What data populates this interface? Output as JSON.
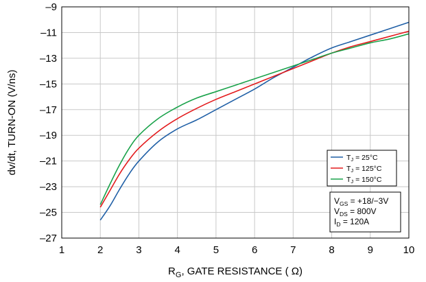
{
  "chart_data": {
    "type": "line",
    "xlabel": "R_G, GATE RESISTANCE ( Ω)",
    "ylabel": "dv/dt, TURN-ON  (V/ns)",
    "xlim": [
      1,
      10
    ],
    "ylim": [
      -27,
      -9
    ],
    "xticks": [
      1,
      2,
      3,
      4,
      5,
      6,
      7,
      8,
      9,
      10
    ],
    "yticks": [
      -9,
      -11,
      -13,
      -15,
      -17,
      -19,
      -21,
      -23,
      -25,
      -27
    ],
    "grid": true,
    "legend_position": "right",
    "series": [
      {
        "name": "Tj = 25°C",
        "color": "#1f5fa6",
        "x": [
          2,
          2.25,
          2.5,
          2.75,
          3,
          3.5,
          4,
          4.5,
          5,
          5.5,
          6,
          6.5,
          7,
          7.5,
          8,
          8.5,
          9,
          9.5,
          10
        ],
        "y": [
          -25.6,
          -24.5,
          -23.2,
          -22.0,
          -21.0,
          -19.5,
          -18.5,
          -17.8,
          -17.0,
          -16.2,
          -15.4,
          -14.5,
          -13.7,
          -12.9,
          -12.2,
          -11.7,
          -11.2,
          -10.7,
          -10.2
        ]
      },
      {
        "name": "Tj = 125°C",
        "color": "#e31a1c",
        "x": [
          2,
          2.25,
          2.5,
          2.75,
          3,
          3.5,
          4,
          4.5,
          5,
          5.5,
          6,
          6.5,
          7,
          7.5,
          8,
          8.5,
          9,
          9.5,
          10
        ],
        "y": [
          -24.6,
          -23.3,
          -22.0,
          -20.9,
          -20.0,
          -18.7,
          -17.7,
          -16.9,
          -16.2,
          -15.6,
          -15.0,
          -14.4,
          -13.8,
          -13.2,
          -12.6,
          -12.1,
          -11.7,
          -11.3,
          -10.9
        ]
      },
      {
        "name": "Tj = 150°C",
        "color": "#19a24a",
        "x": [
          2,
          2.25,
          2.5,
          2.75,
          3,
          3.5,
          4,
          4.5,
          5,
          5.5,
          6,
          6.5,
          7,
          7.5,
          8,
          8.5,
          9,
          9.5,
          10
        ],
        "y": [
          -24.4,
          -22.8,
          -21.3,
          -20.0,
          -19.0,
          -17.7,
          -16.8,
          -16.1,
          -15.6,
          -15.1,
          -14.6,
          -14.1,
          -13.6,
          -13.1,
          -12.6,
          -12.2,
          -11.8,
          -11.5,
          -11.1
        ]
      }
    ],
    "conditions": [
      "V_GS = +18/−3V",
      "V_DS = 800V",
      "I_D = 120A"
    ]
  }
}
